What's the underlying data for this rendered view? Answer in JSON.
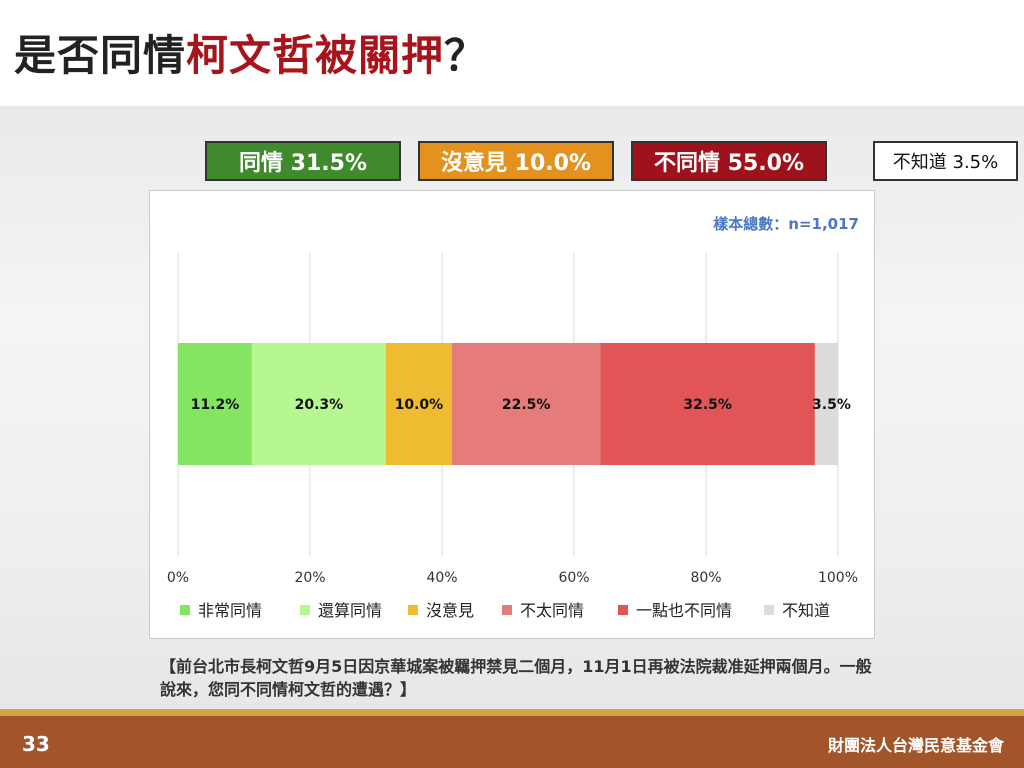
{
  "title": {
    "prefix": "是否同情",
    "highlight": "柯文哲被關押",
    "suffix": "？"
  },
  "summary": [
    {
      "label": "同情 31.5%",
      "color": "#3f8a2c"
    },
    {
      "label": "沒意見 10.0%",
      "color": "#e3921f"
    },
    {
      "label": "不同情 55.0%",
      "color": "#a0121b"
    },
    {
      "label": "不知道 3.5%",
      "color": "#ffffff"
    }
  ],
  "sample_note": "樣本總數：n=1,017",
  "chart_data": {
    "type": "bar",
    "orientation": "horizontal",
    "stacked": true,
    "categories": [
      ""
    ],
    "series": [
      {
        "name": "非常同情",
        "values": [
          11.2
        ],
        "color": "#84e562"
      },
      {
        "name": "還算同情",
        "values": [
          20.3
        ],
        "color": "#b7f792"
      },
      {
        "name": "沒意見",
        "values": [
          10.0
        ],
        "color": "#efbb30"
      },
      {
        "name": "不太同情",
        "values": [
          22.5
        ],
        "color": "#e57b7b"
      },
      {
        "name": "一點也不同情",
        "values": [
          32.5
        ],
        "color": "#e25557"
      },
      {
        "name": "不知道",
        "values": [
          3.5
        ],
        "color": "#dcdcdc"
      }
    ],
    "data_labels": [
      "11.2%",
      "20.3%",
      "10.0%",
      "22.5%",
      "32.5%",
      "3.5%"
    ],
    "xticks": [
      "0%",
      "20%",
      "40%",
      "60%",
      "80%",
      "100%"
    ],
    "xlim": [
      0,
      100
    ],
    "grid": true,
    "legend_position": "bottom"
  },
  "question": "【前台北市長柯文哲9月5日因京華城案被羈押禁見二個月，11月1日再被法院裁准延押兩個月。一般說來，您同不同情柯文哲的遭遇？】",
  "footer": {
    "page_number": "33",
    "organization": "財團法人台灣民意基金會"
  }
}
